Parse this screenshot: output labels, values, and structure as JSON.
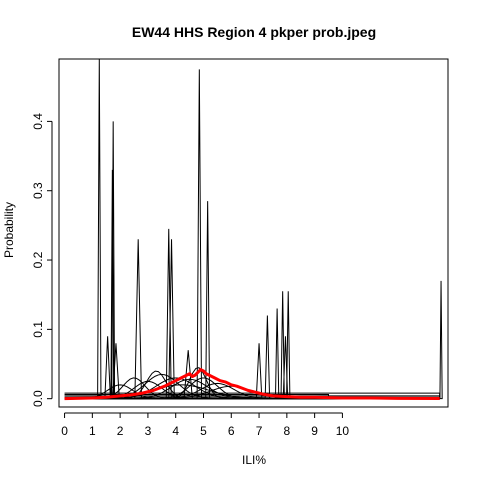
{
  "chart_data": {
    "type": "line",
    "title": "EW44 HHS Region 4 pkper prob.jpeg",
    "xlabel": "ILI%",
    "ylabel": "Probability",
    "xlim": [
      -0.2,
      13.8
    ],
    "ylim": [
      -0.012,
      0.49
    ],
    "x_ticks": [
      "0",
      "1",
      "2",
      "3",
      "4",
      "5",
      "6",
      "7",
      "8",
      "9",
      "10"
    ],
    "y_ticks": [
      "0.0",
      "0.1",
      "0.2",
      "0.3",
      "0.4"
    ],
    "grid": false,
    "colors": {
      "ensemble": "#000000",
      "mean": "#ff0000"
    },
    "series": [
      {
        "type": "spike",
        "center": 1.25,
        "peak": 0.49,
        "width": 0.06
      },
      {
        "type": "spike",
        "center": 1.75,
        "peak": 0.4,
        "width": 0.05
      },
      {
        "type": "spike",
        "center": 1.72,
        "peak": 0.33,
        "width": 0.05
      },
      {
        "type": "spike",
        "center": 1.55,
        "peak": 0.09,
        "width": 0.1
      },
      {
        "type": "spike",
        "center": 1.85,
        "peak": 0.08,
        "width": 0.12
      },
      {
        "type": "spike",
        "center": 2.65,
        "peak": 0.23,
        "width": 0.12
      },
      {
        "type": "spike",
        "center": 3.75,
        "peak": 0.245,
        "width": 0.09
      },
      {
        "type": "spike",
        "center": 3.85,
        "peak": 0.23,
        "width": 0.1
      },
      {
        "type": "spike",
        "center": 4.85,
        "peak": 0.475,
        "width": 0.08
      },
      {
        "type": "spike",
        "center": 5.15,
        "peak": 0.285,
        "width": 0.07
      },
      {
        "type": "spike",
        "center": 4.45,
        "peak": 0.07,
        "width": 0.15
      },
      {
        "type": "spike",
        "center": 7.0,
        "peak": 0.08,
        "width": 0.1
      },
      {
        "type": "spike",
        "center": 7.3,
        "peak": 0.12,
        "width": 0.08
      },
      {
        "type": "spike",
        "center": 7.65,
        "peak": 0.13,
        "width": 0.06
      },
      {
        "type": "spike",
        "center": 7.85,
        "peak": 0.155,
        "width": 0.06
      },
      {
        "type": "spike",
        "center": 8.05,
        "peak": 0.155,
        "width": 0.06
      },
      {
        "type": "spike",
        "center": 7.95,
        "peak": 0.09,
        "width": 0.08
      },
      {
        "type": "spike",
        "center": 13.55,
        "peak": 0.17,
        "width": 0.04
      },
      {
        "type": "bump",
        "center": 3.5,
        "peak": 0.035,
        "width": 1.2
      },
      {
        "type": "bump",
        "center": 4.0,
        "peak": 0.03,
        "width": 1.4
      },
      {
        "type": "bump",
        "center": 3.0,
        "peak": 0.025,
        "width": 1.0
      },
      {
        "type": "bump",
        "center": 4.5,
        "peak": 0.028,
        "width": 1.3
      },
      {
        "type": "bump",
        "center": 5.5,
        "peak": 0.022,
        "width": 1.2
      },
      {
        "type": "bump",
        "center": 2.5,
        "peak": 0.03,
        "width": 0.8
      },
      {
        "type": "bump",
        "center": 6.0,
        "peak": 0.018,
        "width": 1.5
      },
      {
        "type": "bump",
        "center": 3.3,
        "peak": 0.04,
        "width": 0.7
      },
      {
        "type": "bump",
        "center": 4.8,
        "peak": 0.045,
        "width": 0.6
      },
      {
        "type": "bump",
        "center": 2.0,
        "peak": 0.02,
        "width": 0.9
      },
      {
        "type": "bump",
        "center": 5.0,
        "peak": 0.03,
        "width": 1.0
      },
      {
        "type": "bump",
        "center": 4.2,
        "peak": 0.02,
        "width": 2.0
      },
      {
        "type": "flat",
        "level": 0.008,
        "x_end": 13.5
      },
      {
        "type": "flat",
        "level": 0.004,
        "x_end": 13.5
      },
      {
        "type": "flat",
        "level": 0.002,
        "x_end": 13.5
      },
      {
        "type": "flat",
        "level": 0.006,
        "x_end": 9.5
      }
    ],
    "mean_series": {
      "name": "mean",
      "x": [
        0,
        1,
        1.5,
        2,
        2.5,
        2.8,
        3.0,
        3.2,
        3.4,
        3.6,
        3.8,
        4.0,
        4.2,
        4.4,
        4.5,
        4.6,
        4.7,
        4.8,
        4.9,
        5.0,
        5.1,
        5.2,
        5.4,
        5.6,
        5.8,
        6.0,
        6.2,
        6.4,
        6.6,
        6.8,
        7.0,
        7.2,
        7.5,
        8.0,
        8.5,
        9.0,
        10.0,
        11.0,
        12.0,
        13.5
      ],
      "y": [
        0,
        0.001,
        0.002,
        0.004,
        0.006,
        0.008,
        0.01,
        0.012,
        0.015,
        0.018,
        0.022,
        0.026,
        0.03,
        0.034,
        0.036,
        0.032,
        0.034,
        0.038,
        0.042,
        0.04,
        0.036,
        0.034,
        0.03,
        0.026,
        0.024,
        0.02,
        0.018,
        0.015,
        0.012,
        0.01,
        0.008,
        0.006,
        0.004,
        0.003,
        0.002,
        0.002,
        0.001,
        0.001,
        0.0005,
        0.0002
      ]
    }
  }
}
